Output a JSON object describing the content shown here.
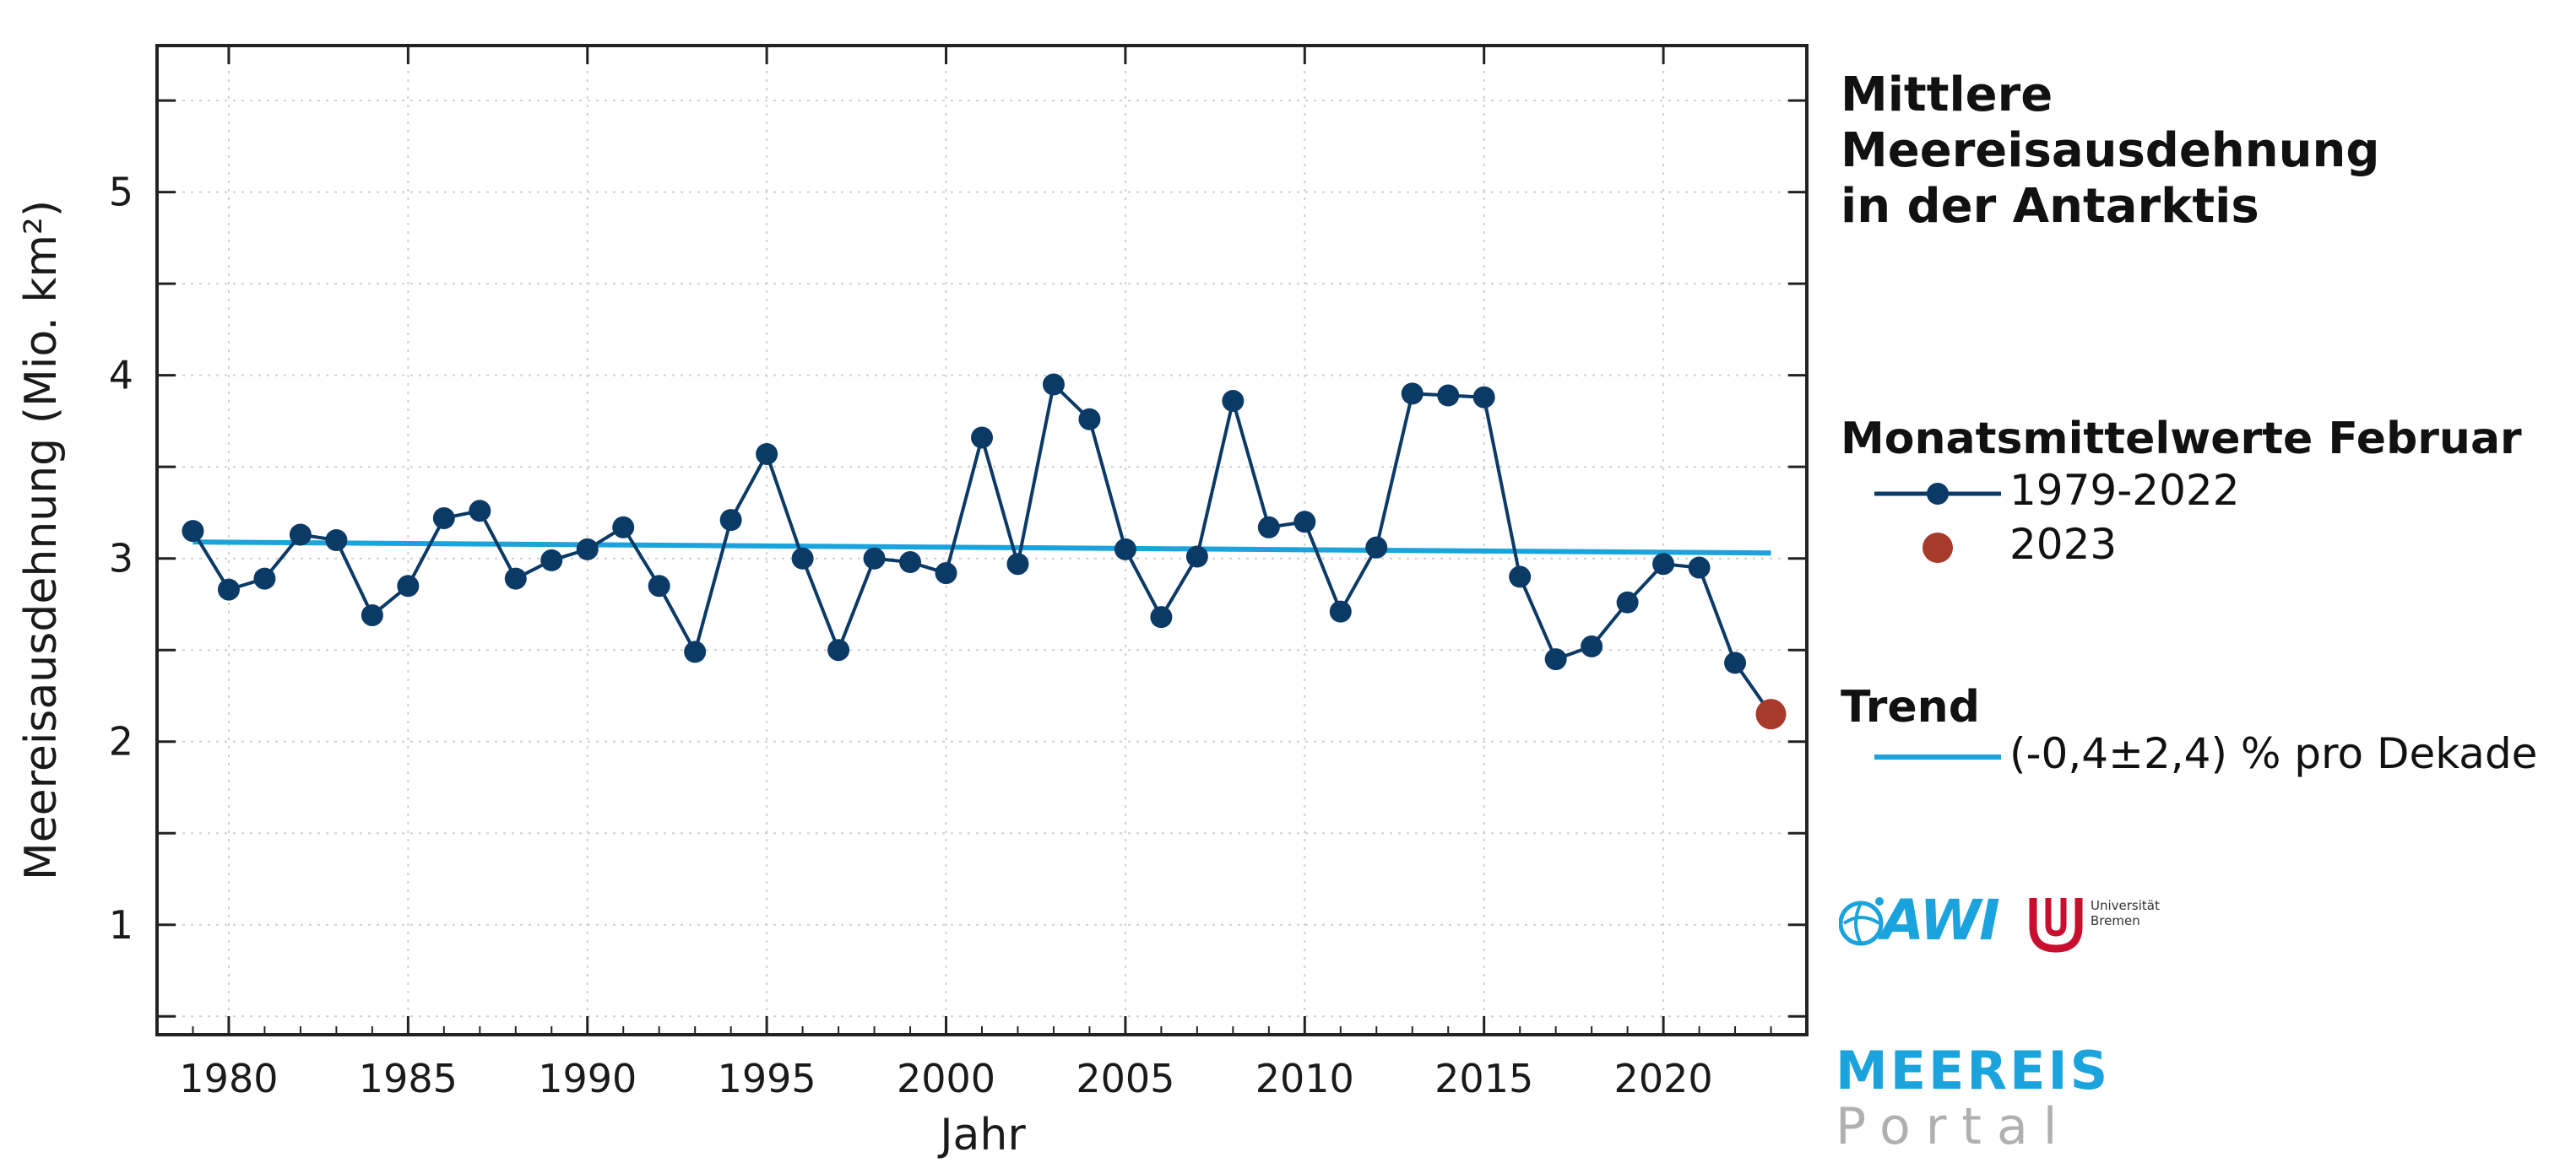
{
  "title_line1": "Mittlere Meereisausdehnung",
  "title_line2": "in der Antarktis",
  "legend": {
    "series_heading": "Monatsmittelwerte Februar",
    "series_label": "1979-2022",
    "highlight_label": "2023",
    "trend_heading": "Trend",
    "trend_label": "(-0,4±2,4) % pro Dekade"
  },
  "logos": {
    "awi": "AWI",
    "uni_line1": "Universität",
    "uni_line2": "Bremen",
    "portal_line1": "MEEREIS",
    "portal_line2": "Portal"
  },
  "colors": {
    "series": "#0b3a66",
    "highlight": "#a83a2c",
    "trend": "#1aa3dc",
    "portal_blue": "#1aa3dc",
    "portal_gray": "#b0b0b0",
    "uni_red": "#c8102e"
  },
  "chart_data": {
    "type": "line",
    "xlabel": "Jahr",
    "ylabel": "Meereisausdehnung (Mio. km²)",
    "xlim": [
      1978,
      2024
    ],
    "ylim": [
      0.4,
      5.8
    ],
    "x_ticks": [
      1980,
      1985,
      1990,
      1995,
      2000,
      2005,
      2010,
      2015,
      2020
    ],
    "y_ticks": [
      1,
      2,
      3,
      4,
      5
    ],
    "grid": true,
    "series": [
      {
        "name": "1979-2022",
        "x": [
          1979,
          1980,
          1981,
          1982,
          1983,
          1984,
          1985,
          1986,
          1987,
          1988,
          1989,
          1990,
          1991,
          1992,
          1993,
          1994,
          1995,
          1996,
          1997,
          1998,
          1999,
          2000,
          2001,
          2002,
          2003,
          2004,
          2005,
          2006,
          2007,
          2008,
          2009,
          2010,
          2011,
          2012,
          2013,
          2014,
          2015,
          2016,
          2017,
          2018,
          2019,
          2020,
          2021,
          2022,
          2023
        ],
        "y": [
          3.15,
          2.83,
          2.89,
          3.13,
          3.1,
          2.69,
          2.85,
          3.22,
          3.26,
          2.89,
          2.99,
          3.05,
          3.17,
          2.85,
          2.49,
          3.21,
          3.57,
          3.0,
          2.5,
          3.0,
          2.98,
          2.92,
          3.66,
          2.97,
          3.95,
          3.76,
          3.05,
          2.68,
          3.01,
          3.86,
          3.17,
          3.2,
          2.71,
          3.06,
          3.9,
          3.89,
          3.88,
          2.9,
          2.45,
          2.52,
          2.76,
          2.97,
          2.95,
          2.43,
          2.15
        ]
      },
      {
        "name": "2023",
        "x": [
          2023
        ],
        "y": [
          2.15
        ]
      }
    ],
    "trend": {
      "name": "(-0,4±2,4) % pro Dekade",
      "x": [
        1979,
        2023
      ],
      "y": [
        3.09,
        3.03
      ]
    }
  }
}
